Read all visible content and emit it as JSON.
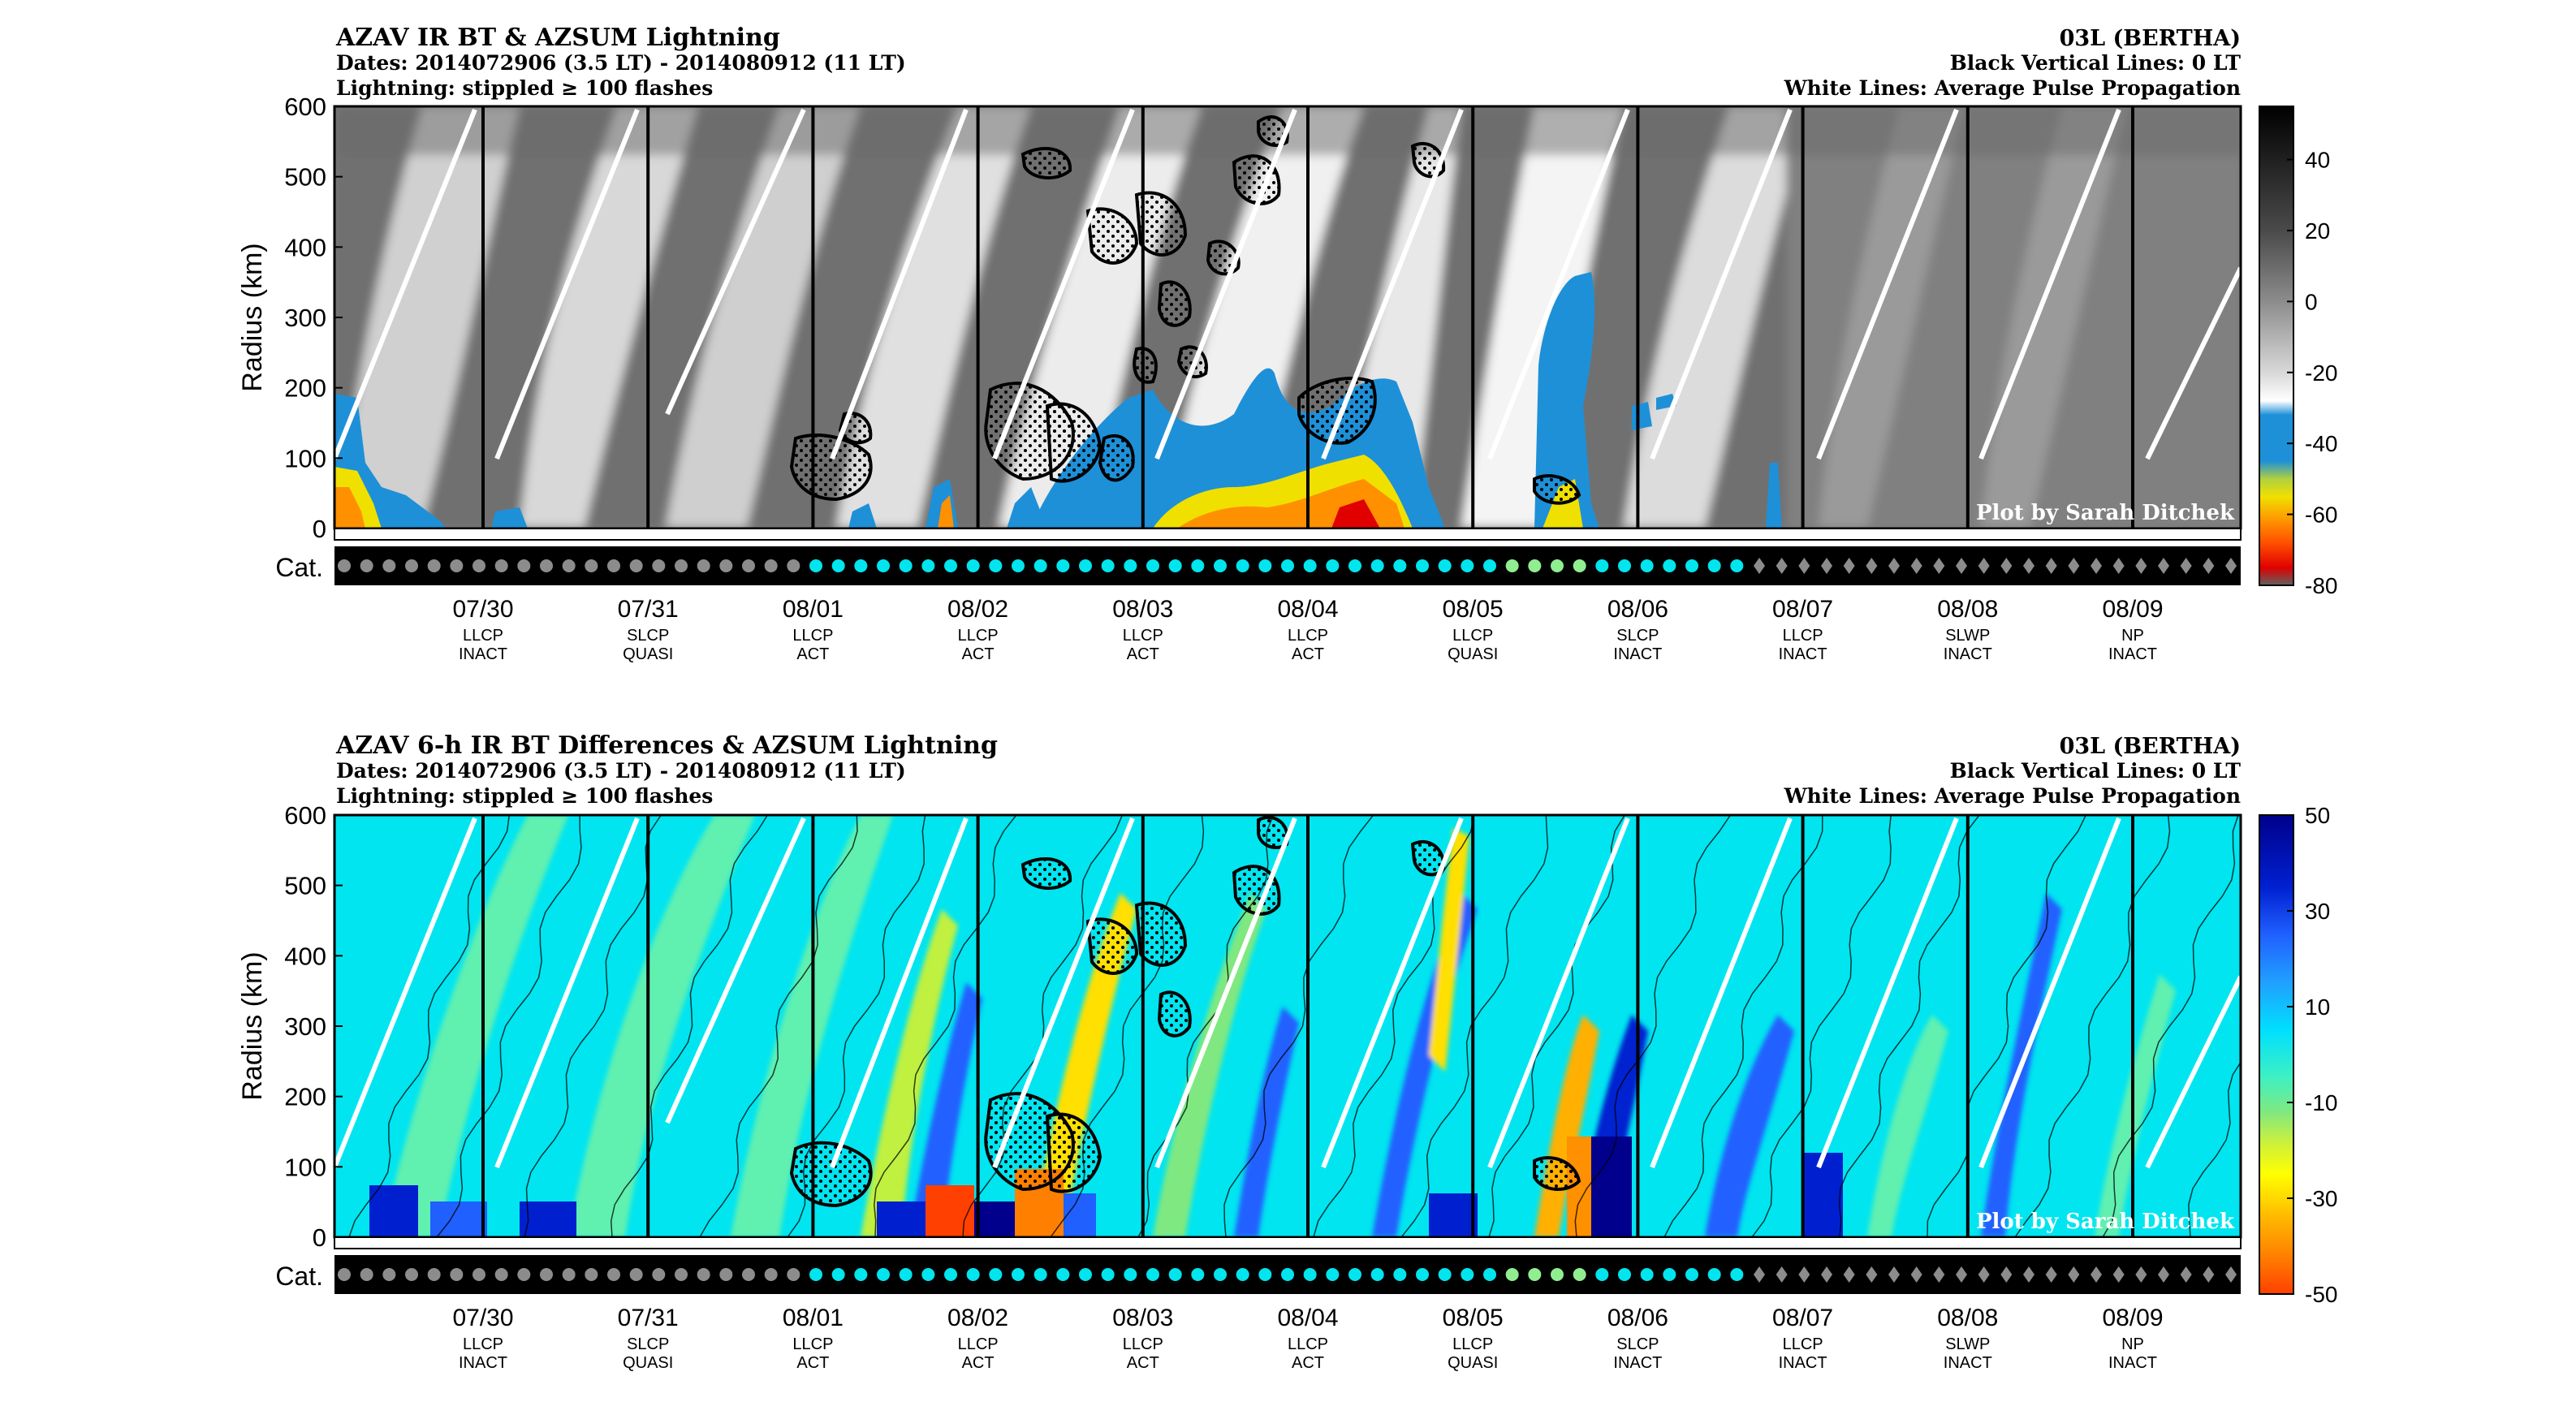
{
  "panels": [
    {
      "id": "top",
      "title": "AZAV IR BT & AZSUM Lightning",
      "dates": "Dates: 2014072906 (3.5 LT) - 2014080912 (11 LT)",
      "lightning_note": "Lightning: stippled ≥ 100 flashes",
      "storm": "03L (BERTHA)",
      "black_lines": "Black Vertical Lines: 0 LT",
      "white_lines": "White Lines: Average Pulse Propagation",
      "credit": "Plot by Sarah Ditchek",
      "ylabel": "Radius (km)",
      "cat_label": "Cat.",
      "yticks": [
        "0",
        "100",
        "200",
        "300",
        "400",
        "500",
        "600"
      ],
      "colorbar": {
        "ticks": [
          "40",
          "20",
          "0",
          "-20",
          "-40",
          "-60",
          "-80"
        ],
        "range": [
          -80,
          55
        ],
        "stops": [
          {
            "v": 55,
            "c": "#000000"
          },
          {
            "v": 20,
            "c": "#4a4a4a"
          },
          {
            "v": 0,
            "c": "#8c8c8c"
          },
          {
            "v": -20,
            "c": "#d8d8d8"
          },
          {
            "v": -28,
            "c": "#ffffff"
          },
          {
            "v": -32,
            "c": "#1e90d8"
          },
          {
            "v": -45,
            "c": "#1e90d8"
          },
          {
            "v": -50,
            "c": "#b0d040"
          },
          {
            "v": -55,
            "c": "#f0e000"
          },
          {
            "v": -62,
            "c": "#ff9000"
          },
          {
            "v": -68,
            "c": "#ff5000"
          },
          {
            "v": -75,
            "c": "#e00000"
          },
          {
            "v": -80,
            "c": "#606060"
          }
        ]
      }
    },
    {
      "id": "bottom",
      "title": "AZAV 6-h IR BT Differences & AZSUM Lightning",
      "dates": "Dates: 2014072906 (3.5 LT) - 2014080912 (11 LT)",
      "lightning_note": "Lightning: stippled ≥ 100 flashes",
      "storm": "03L (BERTHA)",
      "black_lines": "Black Vertical Lines: 0 LT",
      "white_lines": "White Lines: Average Pulse Propagation",
      "credit": "Plot by Sarah Ditchek",
      "ylabel": "Radius (km)",
      "cat_label": "Cat.",
      "yticks": [
        "0",
        "100",
        "200",
        "300",
        "400",
        "500",
        "600"
      ],
      "colorbar": {
        "ticks": [
          "50",
          "30",
          "10",
          "-10",
          "-30",
          "-50"
        ],
        "range": [
          -50,
          50
        ],
        "stops": [
          {
            "v": 50,
            "c": "#00008c"
          },
          {
            "v": 35,
            "c": "#0020d0"
          },
          {
            "v": 25,
            "c": "#2060ff"
          },
          {
            "v": 15,
            "c": "#20a0ff"
          },
          {
            "v": 5,
            "c": "#00e0ff"
          },
          {
            "v": -5,
            "c": "#40f0c0"
          },
          {
            "v": -12,
            "c": "#80e880"
          },
          {
            "v": -18,
            "c": "#c8f040"
          },
          {
            "v": -25,
            "c": "#ffff00"
          },
          {
            "v": -33,
            "c": "#ffc000"
          },
          {
            "v": -42,
            "c": "#ff8000"
          },
          {
            "v": -50,
            "c": "#ff4000"
          }
        ]
      }
    }
  ],
  "dates": [
    {
      "date": "07/30",
      "code": "LLCP",
      "status": "INACT"
    },
    {
      "date": "07/31",
      "code": "SLCP",
      "status": "QUASI"
    },
    {
      "date": "08/01",
      "code": "LLCP",
      "status": "ACT"
    },
    {
      "date": "08/02",
      "code": "LLCP",
      "status": "ACT"
    },
    {
      "date": "08/03",
      "code": "LLCP",
      "status": "ACT"
    },
    {
      "date": "08/04",
      "code": "LLCP",
      "status": "ACT"
    },
    {
      "date": "08/05",
      "code": "LLCP",
      "status": "QUASI"
    },
    {
      "date": "08/06",
      "code": "SLCP",
      "status": "INACT"
    },
    {
      "date": "08/07",
      "code": "LLCP",
      "status": "INACT"
    },
    {
      "date": "08/08",
      "code": "SLWP",
      "status": "INACT"
    },
    {
      "date": "08/09",
      "code": "NP",
      "status": "INACT"
    }
  ],
  "category_colors": {
    "gray": "#8c8c8c",
    "cyan": "#00e5ee",
    "green": "#90ee90",
    "diamond": "#8c8c8c"
  },
  "chart_data": [
    {
      "type": "heatmap",
      "title": "AZAV IR BT & AZSUM Lightning",
      "ylabel": "Radius (km)",
      "ylim": [
        0,
        600
      ],
      "x_ticks": [
        "07/30",
        "07/31",
        "08/01",
        "08/02",
        "08/03",
        "08/04",
        "08/05",
        "08/06",
        "08/07",
        "08/08",
        "08/09"
      ],
      "colorbar_range": [
        -80,
        55
      ],
      "colorbar_ticks": [
        40,
        20,
        0,
        -20,
        -40,
        -60,
        -80
      ],
      "vertical_lines": "0 LT",
      "lightning": "stippled ≥ 100 flashes",
      "pulse_lines": "Average Pulse Propagation"
    },
    {
      "type": "heatmap",
      "title": "AZAV 6-h IR BT Differences & AZSUM Lightning",
      "ylabel": "Radius (km)",
      "ylim": [
        0,
        600
      ],
      "x_ticks": [
        "07/30",
        "07/31",
        "08/01",
        "08/02",
        "08/03",
        "08/04",
        "08/05",
        "08/06",
        "08/07",
        "08/08",
        "08/09"
      ],
      "colorbar_range": [
        -50,
        50
      ],
      "colorbar_ticks": [
        50,
        30,
        10,
        -10,
        -30,
        -50
      ],
      "vertical_lines": "0 LT",
      "lightning": "stippled ≥ 100 flashes",
      "pulse_lines": "Average Pulse Propagation"
    }
  ]
}
